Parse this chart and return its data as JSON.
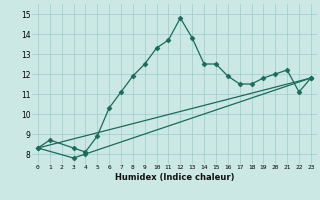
{
  "xlabel": "Humidex (Indice chaleur)",
  "background_color": "#cce8e4",
  "line_color": "#1a6b5a",
  "grid_color": "#99cccc",
  "xlim": [
    -0.5,
    23.5
  ],
  "ylim": [
    7.5,
    15.5
  ],
  "yticks": [
    8,
    9,
    10,
    11,
    12,
    13,
    14,
    15
  ],
  "xticks": [
    0,
    1,
    2,
    3,
    4,
    5,
    6,
    7,
    8,
    9,
    10,
    11,
    12,
    13,
    14,
    15,
    16,
    17,
    18,
    19,
    20,
    21,
    22,
    23
  ],
  "line1_x": [
    0,
    1,
    3,
    4,
    5,
    6,
    7,
    8,
    9,
    10,
    11,
    12,
    13,
    14,
    15,
    16,
    17,
    18,
    19,
    20,
    21,
    22,
    23
  ],
  "line1_y": [
    8.3,
    8.7,
    8.3,
    8.1,
    8.9,
    10.3,
    11.1,
    11.9,
    12.5,
    13.3,
    13.7,
    14.8,
    13.8,
    12.5,
    12.5,
    11.9,
    11.5,
    11.5,
    11.8,
    12.0,
    12.2,
    11.1,
    11.8
  ],
  "line2_x": [
    0,
    3,
    4,
    23
  ],
  "line2_y": [
    8.3,
    7.8,
    8.0,
    11.8
  ],
  "line3_x": [
    0,
    23
  ],
  "line3_y": [
    8.3,
    11.8
  ]
}
